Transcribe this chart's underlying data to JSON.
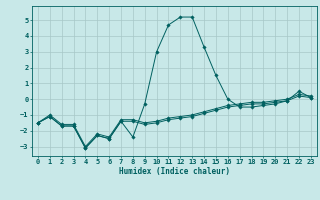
{
  "xlabel": "Humidex (Indice chaleur)",
  "ylabel": "",
  "background_color": "#c8e8e8",
  "grid_color": "#a8c8c8",
  "line_color": "#006060",
  "xlim": [
    -0.5,
    23.5
  ],
  "ylim": [
    -3.6,
    5.9
  ],
  "x_ticks": [
    0,
    1,
    2,
    3,
    4,
    5,
    6,
    7,
    8,
    9,
    10,
    11,
    12,
    13,
    14,
    15,
    16,
    17,
    18,
    19,
    20,
    21,
    22,
    23
  ],
  "y_ticks": [
    -3,
    -2,
    -1,
    0,
    1,
    2,
    3,
    4,
    5
  ],
  "lines": [
    {
      "x": [
        0,
        1,
        2,
        3,
        4,
        5,
        6,
        7,
        8,
        9,
        10,
        11,
        12,
        13,
        14,
        15,
        16,
        17,
        18,
        19,
        20,
        21,
        22,
        23
      ],
      "y": [
        -1.5,
        -1.1,
        -1.7,
        -1.7,
        -3.1,
        -2.3,
        -2.5,
        -1.4,
        -1.4,
        -1.6,
        -1.5,
        -1.3,
        -1.2,
        -1.1,
        -0.9,
        -0.7,
        -0.5,
        -0.4,
        -0.3,
        -0.3,
        -0.2,
        -0.1,
        0.2,
        0.1
      ]
    },
    {
      "x": [
        0,
        1,
        2,
        3,
        4,
        5,
        6,
        7,
        8,
        9,
        10,
        11,
        12,
        13,
        14,
        15,
        16,
        17,
        18,
        19,
        20,
        21,
        22,
        23
      ],
      "y": [
        -1.5,
        -1.1,
        -1.7,
        -1.7,
        -3.1,
        -2.3,
        -2.5,
        -1.4,
        -2.4,
        -0.3,
        3.0,
        4.7,
        5.2,
        5.2,
        3.3,
        1.5,
        -0.0,
        -0.5,
        -0.5,
        -0.4,
        -0.3,
        -0.1,
        0.5,
        0.1
      ]
    },
    {
      "x": [
        0,
        1,
        2,
        3,
        4,
        5,
        6,
        7,
        8,
        9,
        10,
        11,
        12,
        13,
        14,
        15,
        16,
        17,
        18,
        19,
        20,
        21,
        22,
        23
      ],
      "y": [
        -1.5,
        -1.0,
        -1.6,
        -1.6,
        -3.0,
        -2.2,
        -2.4,
        -1.3,
        -1.3,
        -1.5,
        -1.4,
        -1.2,
        -1.1,
        -1.0,
        -0.8,
        -0.6,
        -0.4,
        -0.3,
        -0.2,
        -0.2,
        -0.1,
        0.0,
        0.3,
        0.2
      ]
    }
  ]
}
